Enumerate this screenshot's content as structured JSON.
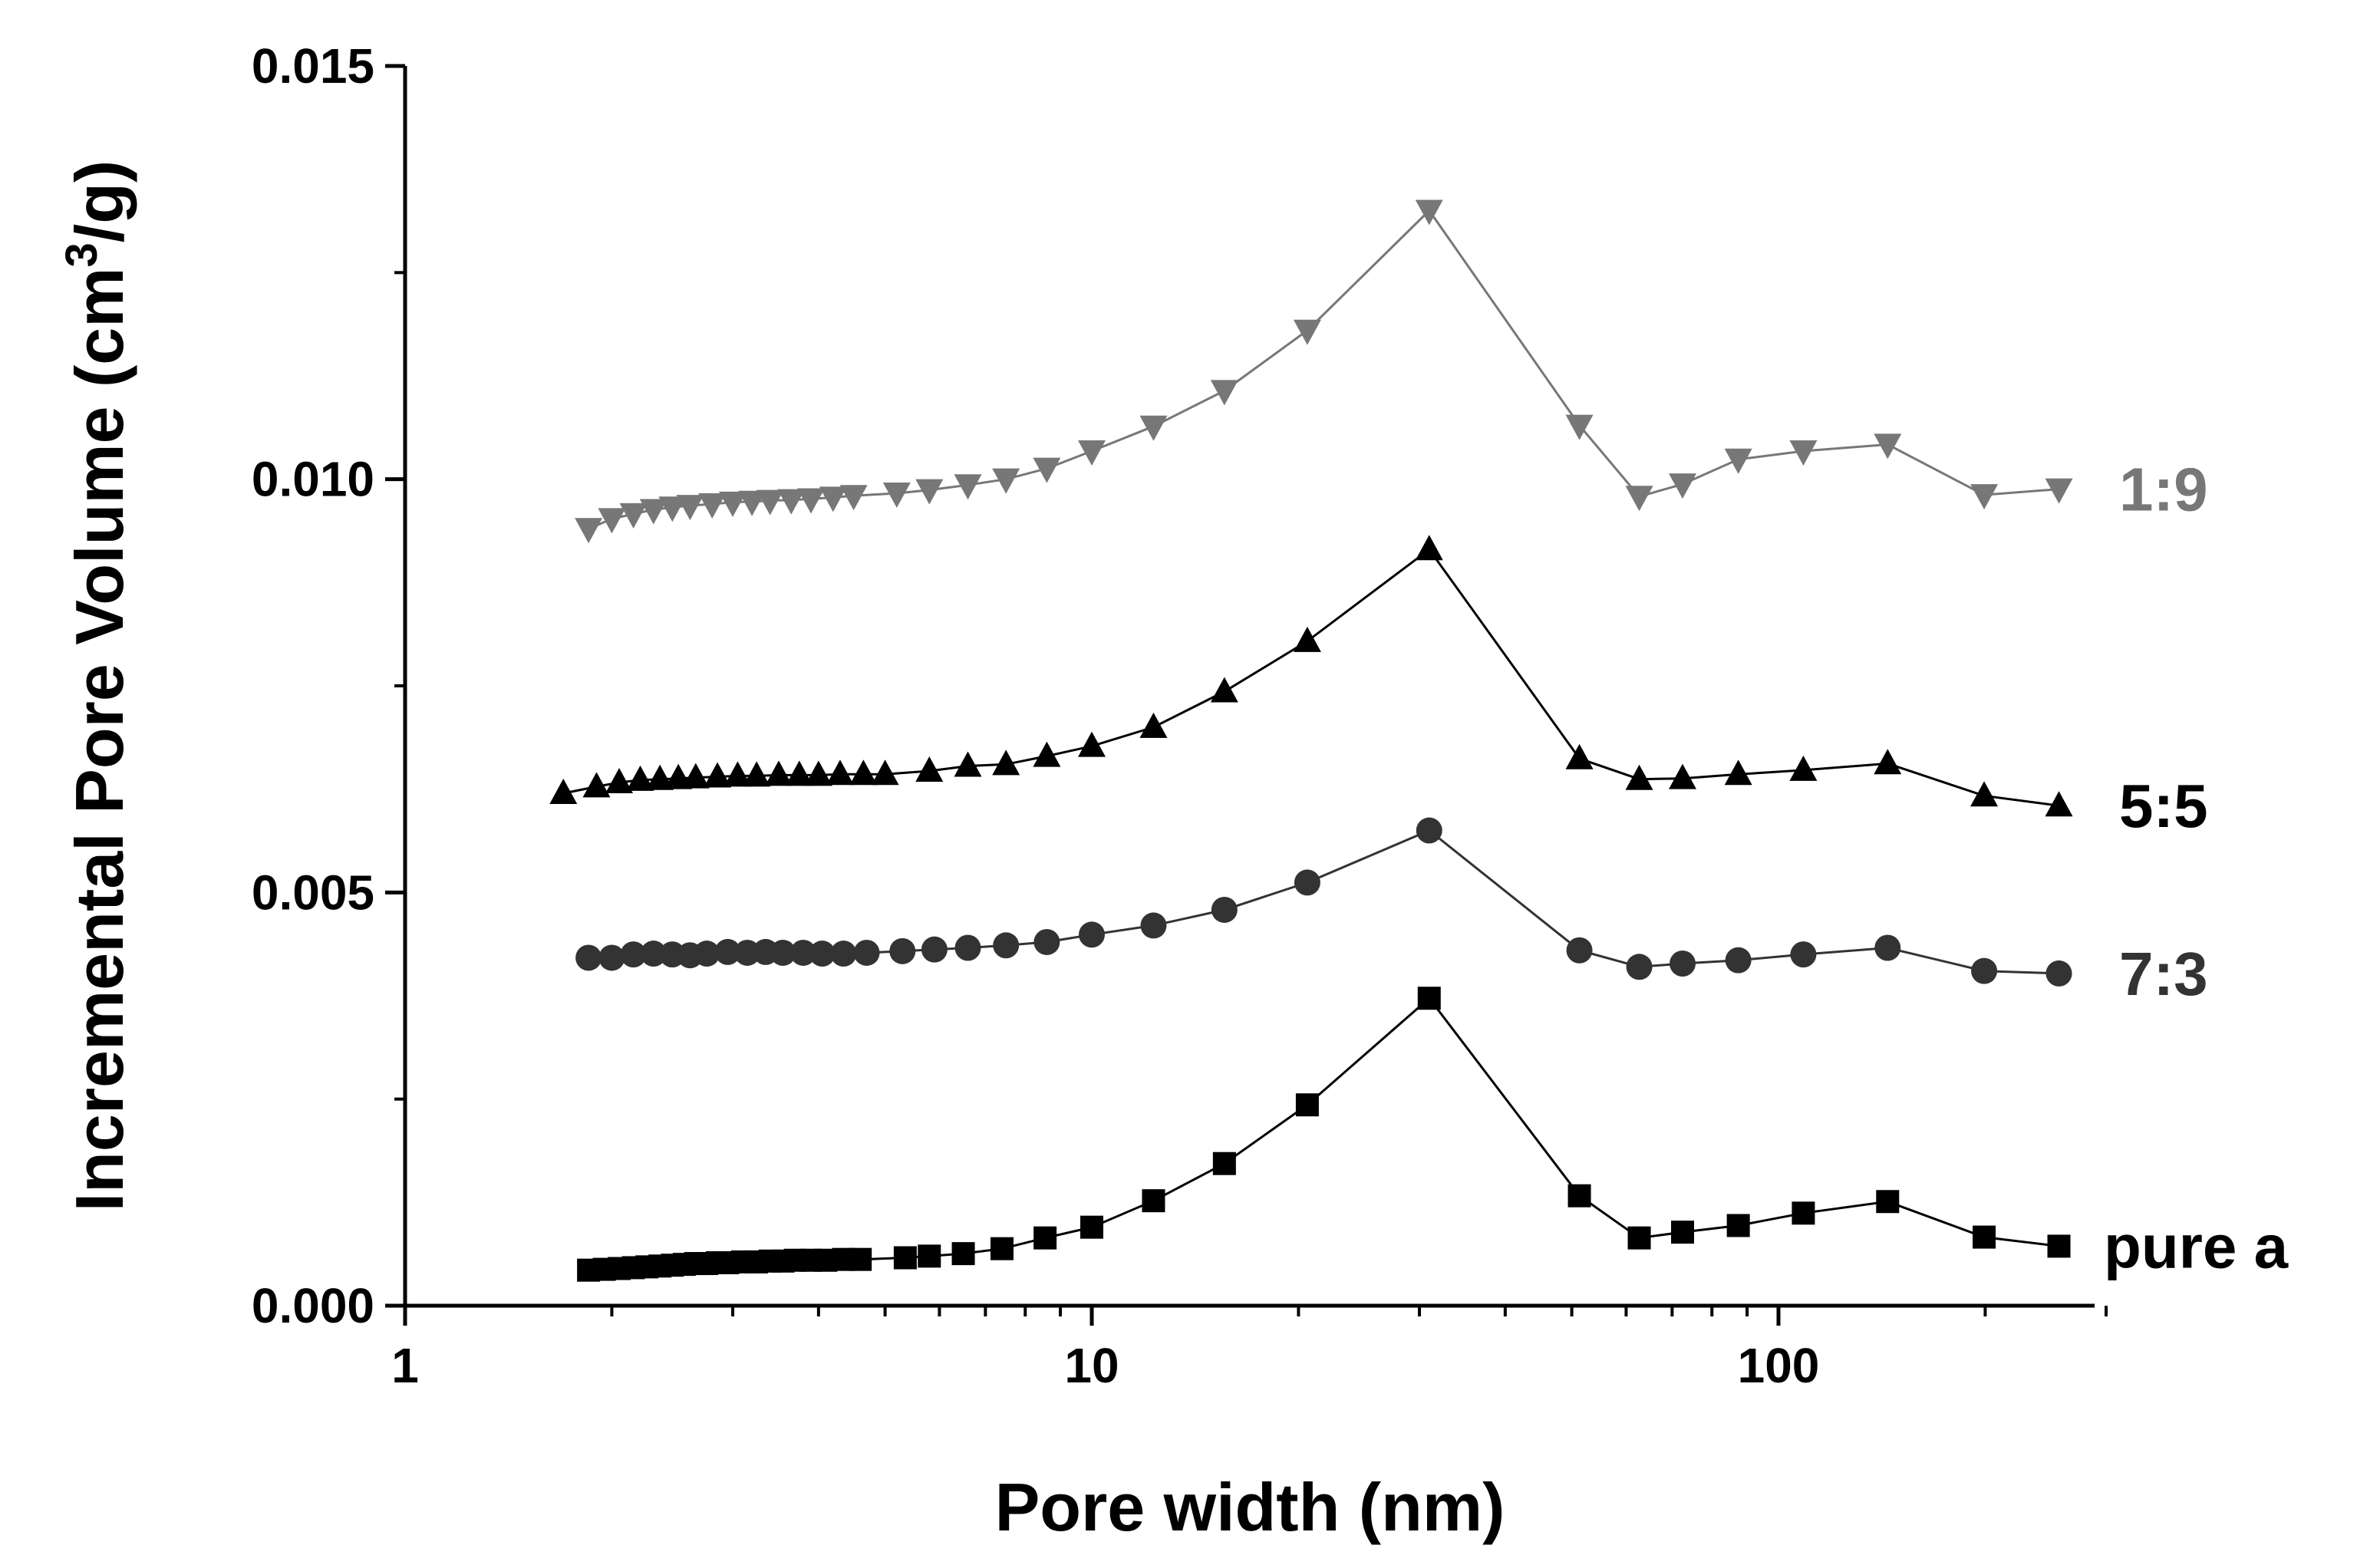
{
  "chart_data": {
    "type": "line",
    "title": "",
    "xlabel": "Pore width (nm)",
    "ylabel_main": "Incremental Pore Volume (cm",
    "ylabel_sup": "3",
    "ylabel_end": "/g)",
    "x_scale": "log",
    "xlim": [
      1,
      300
    ],
    "ylim": [
      0,
      0.015
    ],
    "x_ticks": [
      1,
      10,
      100
    ],
    "x_tick_labels": [
      "1",
      "10",
      "100"
    ],
    "y_ticks": [
      0,
      0.005,
      0.01,
      0.015
    ],
    "y_tick_labels": [
      "0.000",
      "0.005",
      "0.010",
      "0.015"
    ],
    "grid": false,
    "legend": "inline labels at right end of each series",
    "series": [
      {
        "name": "pure a",
        "marker": "square",
        "color": "#000000",
        "x": [
          1.85,
          1.95,
          2.05,
          2.15,
          2.25,
          2.35,
          2.45,
          2.55,
          2.65,
          2.75,
          2.85,
          2.95,
          3.1,
          3.25,
          3.4,
          3.55,
          3.7,
          3.9,
          4.1,
          4.35,
          4.6,
          5.35,
          5.8,
          6.5,
          7.4,
          8.55,
          10.0,
          12.3,
          15.6,
          20.6,
          31.0,
          51.3,
          62.7,
          72.5,
          87.4,
          108.7,
          144.2,
          199.3,
          256.1
        ],
        "y": [
          0.00043,
          0.00044,
          0.00045,
          0.00046,
          0.00047,
          0.00048,
          0.00049,
          0.0005,
          0.00051,
          0.00051,
          0.00052,
          0.00052,
          0.00053,
          0.00053,
          0.00054,
          0.00054,
          0.00055,
          0.00055,
          0.00055,
          0.00056,
          0.00056,
          0.00058,
          0.0006,
          0.00063,
          0.00069,
          0.00082,
          0.00095,
          0.00127,
          0.00172,
          0.00243,
          0.00372,
          0.00133,
          0.00082,
          0.00089,
          0.00097,
          0.00112,
          0.00126,
          0.00083,
          0.00072
        ]
      },
      {
        "name": "7:3",
        "marker": "circle",
        "color": "#333333",
        "x": [
          1.85,
          2.0,
          2.15,
          2.3,
          2.45,
          2.6,
          2.75,
          2.95,
          3.15,
          3.35,
          3.55,
          3.8,
          4.05,
          4.35,
          4.7,
          5.3,
          5.9,
          6.6,
          7.5,
          8.6,
          10.0,
          12.3,
          15.6,
          20.6,
          31.0,
          51.3,
          62.7,
          72.5,
          87.4,
          108.7,
          144.2,
          199.3,
          256.1
        ],
        "y": [
          0.00421,
          0.00421,
          0.00425,
          0.00426,
          0.00425,
          0.00424,
          0.00426,
          0.00428,
          0.00427,
          0.00428,
          0.00427,
          0.00427,
          0.00426,
          0.00426,
          0.00427,
          0.00429,
          0.00431,
          0.00433,
          0.00436,
          0.0044,
          0.00449,
          0.0046,
          0.00479,
          0.00512,
          0.00575,
          0.0043,
          0.0041,
          0.00414,
          0.00418,
          0.00425,
          0.00433,
          0.00405,
          0.00402
        ]
      },
      {
        "name": "5:5",
        "marker": "triangle-up",
        "color": "#000000",
        "x": [
          1.7,
          1.9,
          2.05,
          2.2,
          2.35,
          2.5,
          2.65,
          2.85,
          3.05,
          3.25,
          3.5,
          3.75,
          4.0,
          4.3,
          4.65,
          5.0,
          5.8,
          6.6,
          7.5,
          8.6,
          10.0,
          12.3,
          15.6,
          20.6,
          31.0,
          51.3,
          62.7,
          72.5,
          87.4,
          108.7,
          144.2,
          199.3,
          256.1
        ],
        "y": [
          0.0062,
          0.00628,
          0.00633,
          0.00636,
          0.00637,
          0.00638,
          0.00639,
          0.0064,
          0.00641,
          0.00641,
          0.00642,
          0.00642,
          0.00642,
          0.00643,
          0.00643,
          0.00643,
          0.00647,
          0.00653,
          0.00655,
          0.00665,
          0.00677,
          0.007,
          0.00743,
          0.00804,
          0.00915,
          0.00662,
          0.00637,
          0.00638,
          0.00643,
          0.00648,
          0.00656,
          0.00617,
          0.00605
        ]
      },
      {
        "name": "1:9",
        "marker": "triangle-down",
        "color": "#777777",
        "x": [
          1.85,
          2.0,
          2.15,
          2.3,
          2.45,
          2.6,
          2.8,
          3.0,
          3.2,
          3.4,
          3.65,
          3.9,
          4.2,
          4.5,
          5.2,
          5.8,
          6.6,
          7.5,
          8.6,
          10.0,
          12.3,
          15.6,
          20.6,
          31.0,
          51.3,
          62.7,
          72.5,
          87.4,
          108.7,
          144.2,
          199.3,
          256.1
        ],
        "y": [
          0.0094,
          0.00952,
          0.00958,
          0.00963,
          0.00966,
          0.00968,
          0.0097,
          0.00972,
          0.00973,
          0.00974,
          0.00975,
          0.00976,
          0.00978,
          0.0098,
          0.00983,
          0.00987,
          0.00993,
          0.01,
          0.01013,
          0.01034,
          0.01064,
          0.01107,
          0.0118,
          0.01325,
          0.01065,
          0.00979,
          0.00994,
          0.01024,
          0.01034,
          0.01042,
          0.00981,
          0.00988
        ]
      }
    ]
  }
}
